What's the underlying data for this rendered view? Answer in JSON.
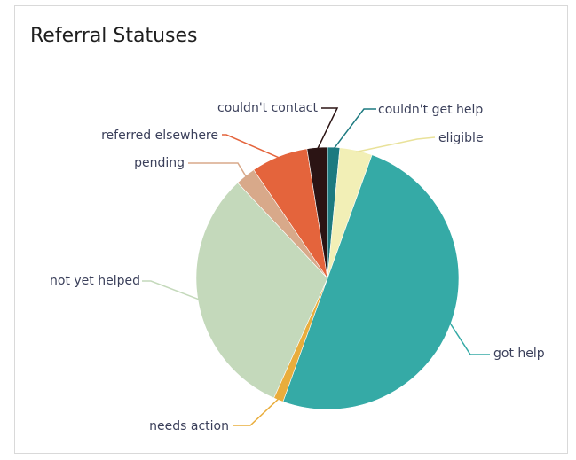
{
  "chart_data": {
    "type": "pie",
    "title": "Referral Statuses",
    "slices": [
      {
        "label": "couldn't get help",
        "value": 1.5,
        "color": "#1d7a80"
      },
      {
        "label": "eligible",
        "value": 4,
        "color": "#f2efb6"
      },
      {
        "label": "got help",
        "value": 50,
        "color": "#35aaa6"
      },
      {
        "label": "needs action",
        "value": 1.2,
        "color": "#e9ad3c"
      },
      {
        "label": "not yet helped",
        "value": 31.3,
        "color": "#c4d9bb"
      },
      {
        "label": "pending",
        "value": 2.5,
        "color": "#d8a98a"
      },
      {
        "label": "referred elsewhere",
        "value": 7,
        "color": "#e4643c"
      },
      {
        "label": "couldn't contact",
        "value": 2.5,
        "color": "#2b1414"
      }
    ]
  }
}
